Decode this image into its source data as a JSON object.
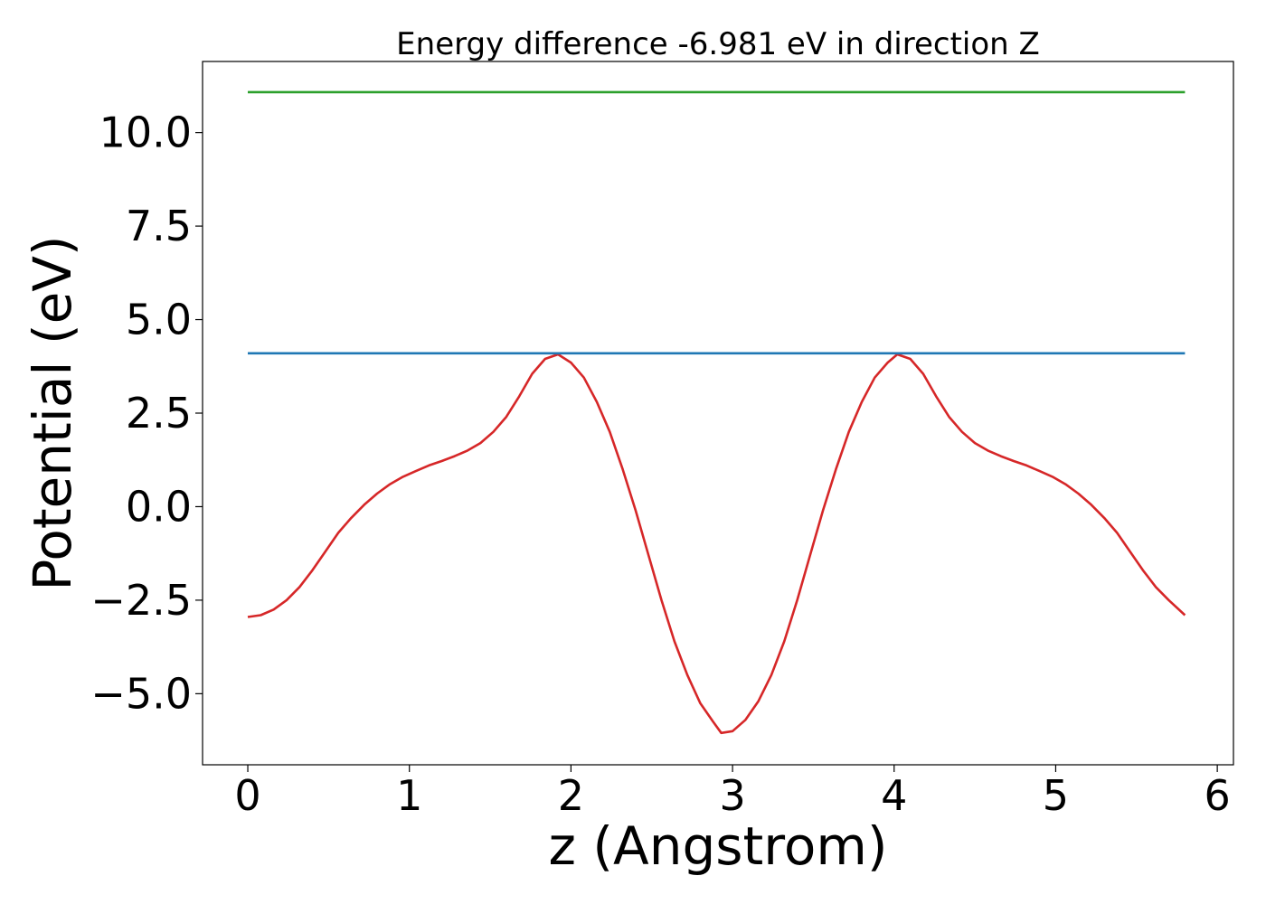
{
  "chart_data": {
    "type": "line",
    "title": "Energy difference -6.981 eV in direction Z",
    "xlabel": "z (Angstrom)",
    "ylabel": "Potential (eV)",
    "xlim": [
      -0.28,
      6.1
    ],
    "ylim": [
      -6.9,
      11.9
    ],
    "xticks": [
      0,
      1,
      2,
      3,
      4,
      5,
      6
    ],
    "xtick_labels": [
      "0",
      "1",
      "2",
      "3",
      "4",
      "5",
      "6"
    ],
    "yticks": [
      -5.0,
      -2.5,
      0.0,
      2.5,
      5.0,
      7.5,
      10.0
    ],
    "ytick_labels": [
      "−5.0",
      "−2.5",
      "0.0",
      "2.5",
      "5.0",
      "7.5",
      "10.0"
    ],
    "grid": false,
    "series": [
      {
        "color": "#d62728",
        "x": [
          0.0,
          0.08,
          0.16,
          0.24,
          0.32,
          0.4,
          0.48,
          0.56,
          0.64,
          0.72,
          0.8,
          0.88,
          0.96,
          1.04,
          1.12,
          1.2,
          1.28,
          1.36,
          1.44,
          1.52,
          1.6,
          1.68,
          1.76,
          1.84,
          1.92,
          2.0,
          2.08,
          2.16,
          2.24,
          2.32,
          2.4,
          2.48,
          2.56,
          2.64,
          2.72,
          2.8,
          2.88,
          2.93,
          3.0,
          3.08,
          3.16,
          3.24,
          3.32,
          3.4,
          3.48,
          3.56,
          3.64,
          3.72,
          3.8,
          3.88,
          3.96,
          4.02,
          4.1,
          4.18,
          4.26,
          4.34,
          4.42,
          4.5,
          4.58,
          4.66,
          4.74,
          4.82,
          4.9,
          4.98,
          5.06,
          5.14,
          5.22,
          5.3,
          5.38,
          5.46,
          5.54,
          5.62,
          5.7,
          5.8
        ],
        "y": [
          -2.95,
          -2.9,
          -2.75,
          -2.5,
          -2.15,
          -1.7,
          -1.2,
          -0.7,
          -0.3,
          0.05,
          0.35,
          0.6,
          0.8,
          0.95,
          1.1,
          1.22,
          1.35,
          1.5,
          1.7,
          2.0,
          2.4,
          2.95,
          3.55,
          3.95,
          4.07,
          3.85,
          3.45,
          2.8,
          2.0,
          1.0,
          -0.1,
          -1.3,
          -2.5,
          -3.6,
          -4.5,
          -5.25,
          -5.75,
          -6.05,
          -6.0,
          -5.7,
          -5.2,
          -4.5,
          -3.6,
          -2.5,
          -1.3,
          -0.1,
          1.0,
          2.0,
          2.8,
          3.45,
          3.85,
          4.07,
          3.95,
          3.55,
          2.95,
          2.4,
          2.0,
          1.7,
          1.5,
          1.35,
          1.22,
          1.1,
          0.95,
          0.8,
          0.6,
          0.35,
          0.05,
          -0.3,
          -0.7,
          -1.2,
          -1.7,
          -2.15,
          -2.5,
          -2.9
        ]
      },
      {
        "color": "#1f77b4",
        "x": [
          0.0,
          5.8
        ],
        "y": [
          4.1,
          4.1
        ]
      },
      {
        "color": "#2ca02c",
        "x": [
          0.0,
          5.8
        ],
        "y": [
          11.08,
          11.08
        ]
      }
    ]
  }
}
